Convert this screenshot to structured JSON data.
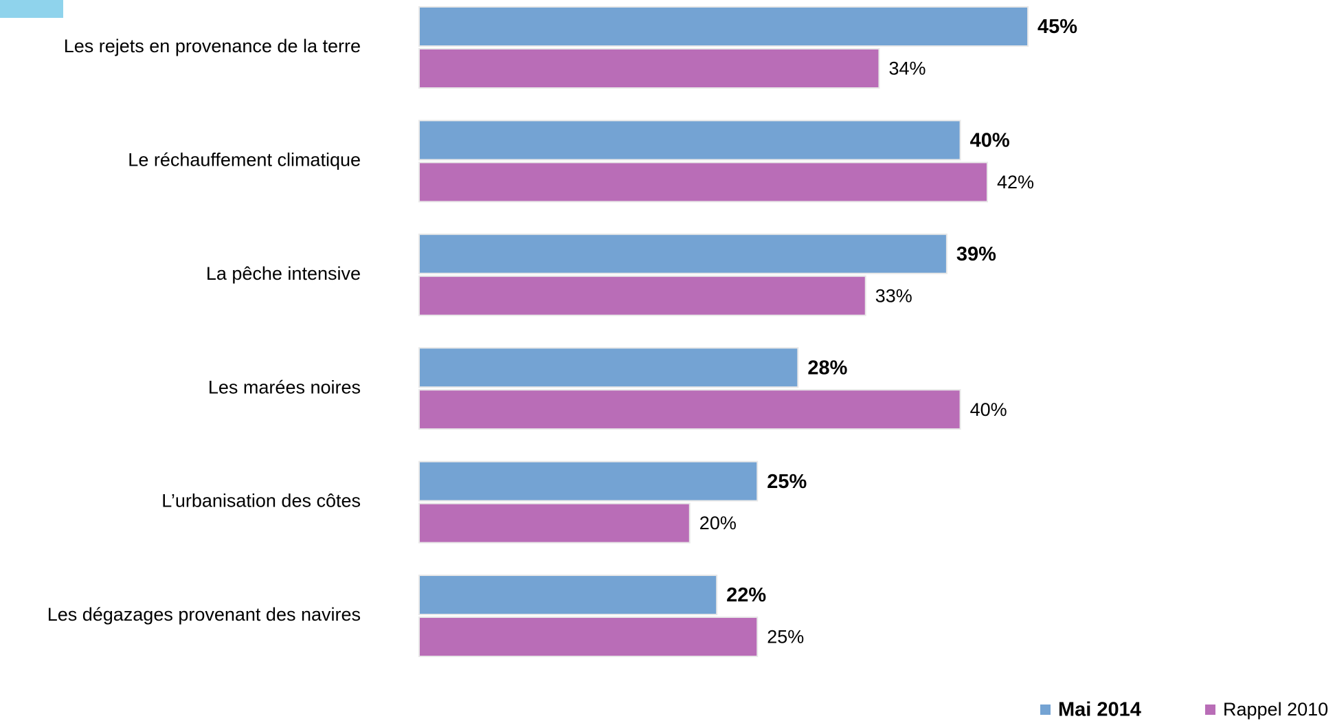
{
  "chart_data": {
    "type": "hbar",
    "categories": [
      "Les rejets en provenance de la terre",
      "Le réchauffement climatique",
      "La pêche intensive",
      "Les marées noires",
      "L’urbanisation des côtes",
      "Les dégazages provenant des navires"
    ],
    "series": [
      {
        "name": "Mai 2014",
        "color": "#74a3d3",
        "values": [
          45,
          40,
          39,
          28,
          25,
          22
        ],
        "value_labels": [
          "45%",
          "40%",
          "39%",
          "28%",
          "25%",
          "22%"
        ]
      },
      {
        "name": "Rappel 2010",
        "color": "#b96db7",
        "values": [
          34,
          42,
          33,
          40,
          20,
          25
        ],
        "value_labels": [
          "34%",
          "42%",
          "33%",
          "40%",
          "20%",
          "25%"
        ]
      }
    ]
  }
}
